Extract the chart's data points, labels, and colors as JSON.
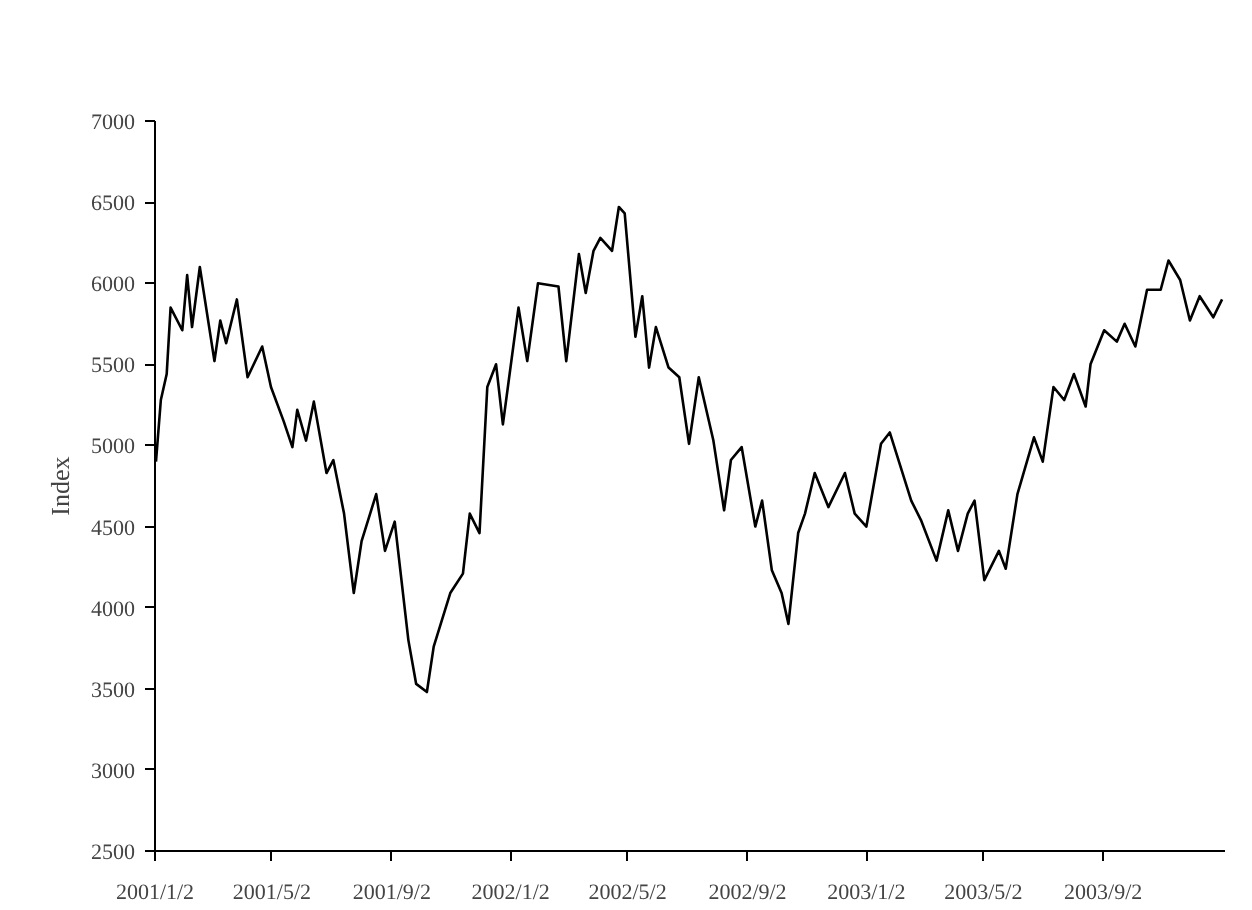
{
  "chart_data": {
    "type": "line",
    "ylabel": "Index",
    "xlim": [
      "2001-01-02",
      "2004-01-05"
    ],
    "ylim": [
      2500,
      7000
    ],
    "yticks": [
      2500,
      3000,
      3500,
      4000,
      4500,
      5000,
      5500,
      6000,
      6500,
      7000
    ],
    "xticks": [
      {
        "value": "2001-01-02",
        "label": "2001/1/2"
      },
      {
        "value": "2001-05-02",
        "label": "2001/5/2"
      },
      {
        "value": "2001-09-02",
        "label": "2001/9/2"
      },
      {
        "value": "2002-01-02",
        "label": "2002/1/2"
      },
      {
        "value": "2002-05-02",
        "label": "2002/5/2"
      },
      {
        "value": "2002-09-02",
        "label": "2002/9/2"
      },
      {
        "value": "2003-01-02",
        "label": "2003/1/2"
      },
      {
        "value": "2003-05-02",
        "label": "2003/5/2"
      },
      {
        "value": "2003-09-02",
        "label": "2003/9/2"
      }
    ],
    "grid": false,
    "marker": "none",
    "line_style": "solid",
    "series": [
      {
        "color": "#000000",
        "x": [
          "2001-01-03",
          "2001-01-08",
          "2001-01-14",
          "2001-01-18",
          "2001-01-30",
          "2001-02-04",
          "2001-02-09",
          "2001-02-17",
          "2001-03-04",
          "2001-03-10",
          "2001-03-16",
          "2001-03-27",
          "2001-04-07",
          "2001-04-22",
          "2001-05-01",
          "2001-05-14",
          "2001-05-23",
          "2001-05-28",
          "2001-06-06",
          "2001-06-14",
          "2001-06-27",
          "2001-07-04",
          "2001-07-15",
          "2001-07-25",
          "2001-08-02",
          "2001-08-17",
          "2001-08-26",
          "2001-09-05",
          "2001-09-19",
          "2001-09-27",
          "2001-10-08",
          "2001-10-15",
          "2001-11-01",
          "2001-11-14",
          "2001-11-21",
          "2001-12-01",
          "2001-12-09",
          "2001-12-18",
          "2001-12-25",
          "2002-01-10",
          "2002-01-19",
          "2002-01-30",
          "2002-02-20",
          "2002-02-28",
          "2002-03-13",
          "2002-03-20",
          "2002-03-28",
          "2002-04-04",
          "2002-04-16",
          "2002-04-23",
          "2002-04-29",
          "2002-05-10",
          "2002-05-17",
          "2002-05-24",
          "2002-05-31",
          "2002-06-13",
          "2002-06-24",
          "2002-07-04",
          "2002-07-14",
          "2002-07-29",
          "2002-08-09",
          "2002-08-16",
          "2002-08-27",
          "2002-09-10",
          "2002-09-17",
          "2002-09-27",
          "2002-10-07",
          "2002-10-14",
          "2002-10-24",
          "2002-10-31",
          "2002-11-10",
          "2002-11-24",
          "2002-12-11",
          "2002-12-21",
          "2003-01-02",
          "2003-01-17",
          "2003-01-26",
          "2003-02-17",
          "2003-02-27",
          "2003-03-15",
          "2003-03-27",
          "2003-04-06",
          "2003-04-16",
          "2003-04-23",
          "2003-05-03",
          "2003-05-18",
          "2003-05-25",
          "2003-06-06",
          "2003-06-23",
          "2003-07-02",
          "2003-07-13",
          "2003-07-24",
          "2003-08-03",
          "2003-08-15",
          "2003-08-20",
          "2003-09-03",
          "2003-09-16",
          "2003-09-24",
          "2003-10-05",
          "2003-10-17",
          "2003-10-31",
          "2003-11-08",
          "2003-11-20",
          "2003-11-30",
          "2003-12-10",
          "2003-12-24",
          "2004-01-02"
        ],
        "values": [
          4900,
          5280,
          5440,
          5850,
          5710,
          6050,
          5730,
          6100,
          5520,
          5770,
          5630,
          5900,
          5420,
          5610,
          5360,
          5150,
          4990,
          5220,
          5030,
          5270,
          4830,
          4910,
          4580,
          4090,
          4410,
          4700,
          4350,
          4530,
          3800,
          3530,
          3480,
          3760,
          4090,
          4210,
          4580,
          4460,
          5360,
          5500,
          5130,
          5850,
          5520,
          6000,
          5980,
          5520,
          6180,
          5940,
          6200,
          6280,
          6200,
          6470,
          6430,
          5670,
          5920,
          5480,
          5730,
          5480,
          5420,
          5010,
          5420,
          5030,
          4600,
          4910,
          4990,
          4500,
          4660,
          4230,
          4090,
          3900,
          4460,
          4580,
          4830,
          4620,
          4830,
          4580,
          4500,
          5010,
          5080,
          4660,
          4540,
          4290,
          4600,
          4350,
          4580,
          4660,
          4170,
          4350,
          4240,
          4700,
          5050,
          4900,
          5360,
          5280,
          5440,
          5240,
          5500,
          5710,
          5640,
          5750,
          5610,
          5960,
          5960,
          6140,
          6020,
          5770,
          5920,
          5790,
          5900
        ]
      }
    ]
  }
}
